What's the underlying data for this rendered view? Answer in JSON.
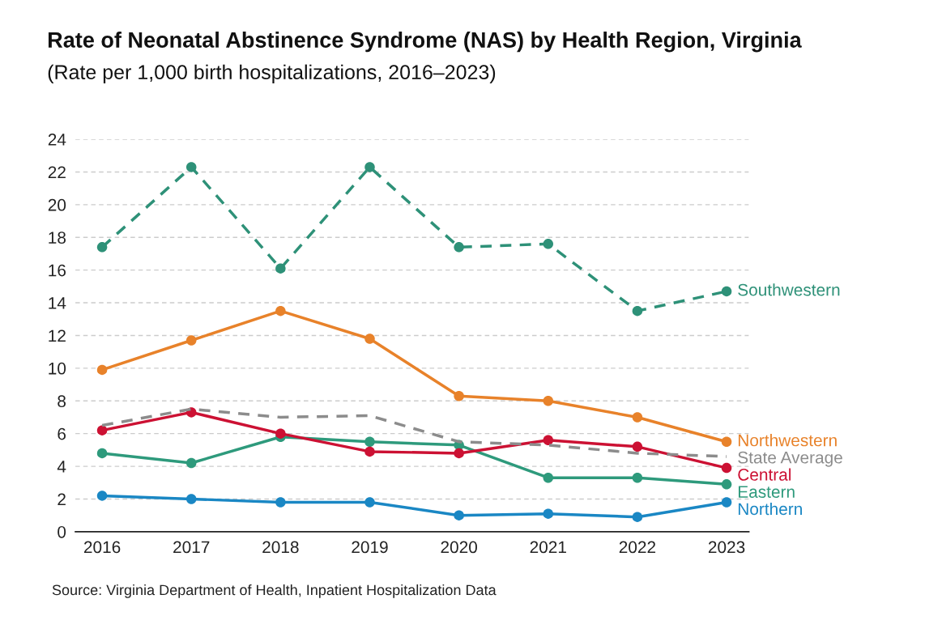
{
  "chart_data": {
    "type": "line",
    "title": "Rate of Neonatal Abstinence Syndrome (NAS) by Health Region, Virginia",
    "subtitle": "(Rate per 1,000 birth hospitalizations, 2016–2023)",
    "categories": [
      "2016",
      "2017",
      "2018",
      "2019",
      "2020",
      "2021",
      "2022",
      "2023"
    ],
    "series": [
      {
        "name": "Southwestern",
        "color": "#2e9178",
        "values": [
          17.4,
          22.3,
          16.1,
          22.3,
          17.4,
          17.6,
          13.5,
          14.7
        ],
        "marker": "circle",
        "line_style": "dashed"
      },
      {
        "name": "Northwestern",
        "color": "#e8822a",
        "values": [
          9.9,
          11.7,
          13.5,
          11.8,
          8.3,
          8.0,
          7.0,
          5.5
        ],
        "marker": "circle",
        "line_style": "solid"
      },
      {
        "name": "State Average",
        "color": "#8c8c8c",
        "values": [
          6.5,
          7.5,
          7.0,
          7.1,
          5.5,
          5.3,
          4.8,
          4.6
        ],
        "marker": "none",
        "line_style": "dashed"
      },
      {
        "name": "Central",
        "color": "#cc1133",
        "values": [
          6.2,
          7.3,
          6.0,
          4.9,
          4.8,
          5.6,
          5.2,
          3.9
        ],
        "marker": "circle",
        "line_style": "solid"
      },
      {
        "name": "Eastern",
        "color": "#2e9a7c",
        "values": [
          4.8,
          4.2,
          5.8,
          5.5,
          5.3,
          3.3,
          3.3,
          2.9
        ],
        "marker": "circle",
        "line_style": "solid"
      },
      {
        "name": "Northern",
        "color": "#1a87c4",
        "values": [
          2.2,
          2.0,
          1.8,
          1.8,
          1.0,
          1.1,
          0.9,
          1.8
        ],
        "marker": "circle",
        "line_style": "solid"
      }
    ],
    "ylim": [
      0,
      24
    ],
    "yticks": [
      0,
      2,
      4,
      6,
      8,
      10,
      12,
      14,
      16,
      18,
      20,
      22,
      24
    ],
    "grid": "y",
    "legend": false,
    "annotations": [
      "Source: Virginia Department of Health, Inpatient Hospitalization Data"
    ]
  }
}
